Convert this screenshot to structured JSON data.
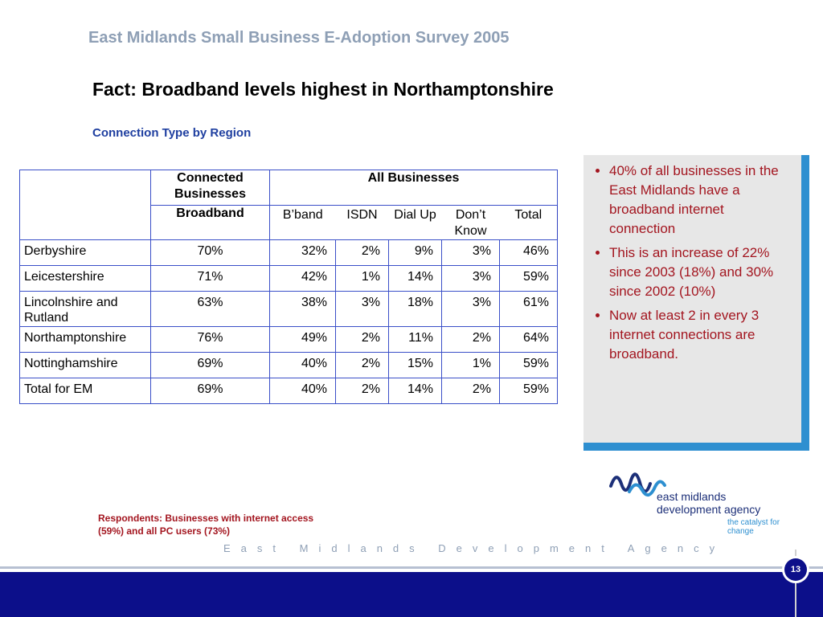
{
  "header": {
    "survey_title": "East Midlands Small Business E-Adoption Survey 2005",
    "slide_title": "Fact: Broadband levels highest in Northamptonshire",
    "subtitle": "Connection Type by Region"
  },
  "table": {
    "group_headers": [
      "Connected Businesses",
      "All Businesses"
    ],
    "columns": [
      "Broadband",
      "B’band",
      "ISDN",
      "Dial Up",
      "Don’t Know",
      "Total"
    ],
    "rows": [
      {
        "region": "Derbyshire",
        "values": [
          "70%",
          "32%",
          "2%",
          "9%",
          "3%",
          "46%"
        ]
      },
      {
        "region": "Leicestershire",
        "values": [
          "71%",
          "42%",
          "1%",
          "14%",
          "3%",
          "59%"
        ]
      },
      {
        "region": "Lincolnshire and Rutland",
        "values": [
          "63%",
          "38%",
          "3%",
          "18%",
          "3%",
          "61%"
        ]
      },
      {
        "region": "Northamptonshire",
        "values": [
          "76%",
          "49%",
          "2%",
          "11%",
          "2%",
          "64%"
        ]
      },
      {
        "region": "Nottinghamshire",
        "values": [
          "69%",
          "40%",
          "2%",
          "15%",
          "1%",
          "59%"
        ]
      },
      {
        "region": "Total for EM",
        "values": [
          "69%",
          "40%",
          "2%",
          "14%",
          "2%",
          "59%"
        ]
      }
    ]
  },
  "callout": {
    "bullets": [
      "40% of all businesses in the East Midlands have a broadband internet connection",
      "This is an increase of 22% since 2003 (18%) and 30% since 2002 (10%)",
      "Now at least 2 in every 3 internet connections are broadband."
    ]
  },
  "logo": {
    "line1": "east midlands",
    "line2": "development agency",
    "tagline": "the catalyst for change"
  },
  "footer": {
    "respondents_line1": "Respondents: Businesses with internet access",
    "respondents_line2": "(59%) and all PC users (73%)",
    "agency_text": "East Midlands Development Agency",
    "page_number": "13"
  },
  "colors": {
    "accent_blue": "#2e8fd0",
    "navy": "#0c0f8a",
    "callout_text": "#a3151f"
  }
}
